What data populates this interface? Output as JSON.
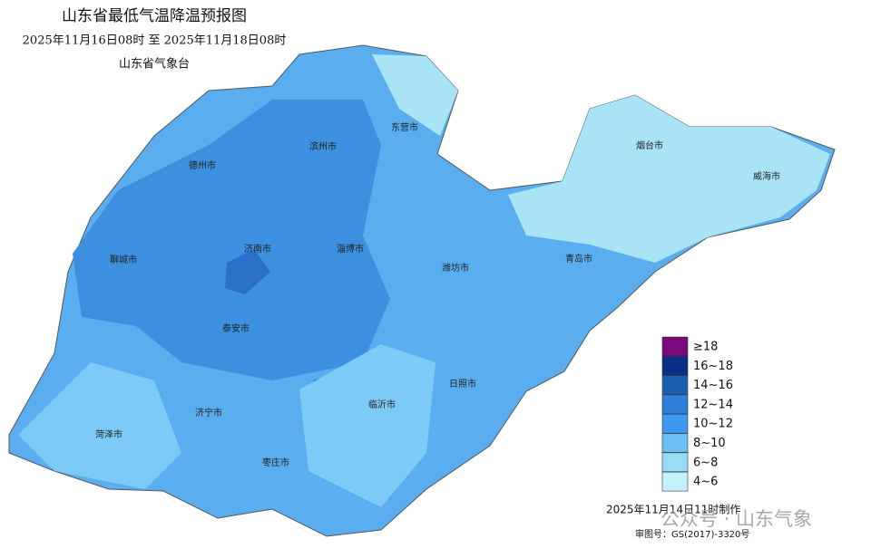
{
  "header": {
    "title": "山东省最低气温降温预报图",
    "period": "2025年11月16日08时  至  2025年11月18日08时",
    "issuer": "山东省气象台"
  },
  "cities": [
    "东营市",
    "滨州市",
    "德州市",
    "烟台市",
    "威海市",
    "淄博市",
    "济南市",
    "聊城市",
    "潍坊市",
    "青岛市",
    "泰安市",
    "日照市",
    "临沂市",
    "济宁市",
    "菏泽市",
    "枣庄市"
  ],
  "legend": [
    {
      "label": "≥18",
      "color": "#7b0a7b"
    },
    {
      "label": "16~18",
      "color": "#0c2f86"
    },
    {
      "label": "14~16",
      "color": "#1b5fb0"
    },
    {
      "label": "12~14",
      "color": "#2f7fd8"
    },
    {
      "label": "10~12",
      "color": "#3d9af0"
    },
    {
      "label": "8~10",
      "color": "#6cc0f5"
    },
    {
      "label": "6~8",
      "color": "#98dcf5"
    },
    {
      "label": "4~6",
      "color": "#c3f2fb"
    }
  ],
  "footer": {
    "made": "2025年11月14日11时制作",
    "approval": "审图号：GS(2017)-3320号",
    "watermark": "公众号 · 山东气象"
  }
}
